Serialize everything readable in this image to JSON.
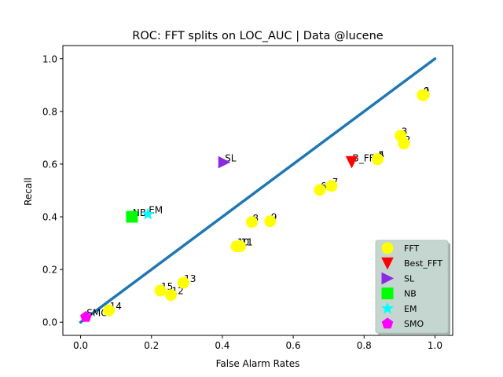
{
  "chart_data": {
    "type": "scatter",
    "title": "ROC: FFT splits on LOC_AUC  |  Data @lucene",
    "xlabel": "False Alarm Rates",
    "ylabel": "Recall",
    "xlim": [
      -0.05,
      1.05
    ],
    "ylim": [
      -0.05,
      1.05
    ],
    "xticks": [
      0.0,
      0.2,
      0.4,
      0.6,
      0.8,
      1.0
    ],
    "xtick_labels": [
      "0.0",
      "0.2",
      "0.4",
      "0.6",
      "0.8",
      "1.0"
    ],
    "yticks": [
      0.0,
      0.2,
      0.4,
      0.6,
      0.8,
      1.0
    ],
    "ytick_labels": [
      "0.0",
      "0.2",
      "0.4",
      "0.6",
      "0.8",
      "1.0"
    ],
    "grid": false,
    "diagonal": {
      "x": [
        0,
        1
      ],
      "y": [
        0,
        1
      ],
      "color": "#1f77b4"
    },
    "legend_position": "lower-right",
    "series": [
      {
        "name": "FFT",
        "marker": "circle",
        "color": "#ffff00",
        "points": [
          {
            "label": "0",
            "x": 0.965,
            "y": 0.862
          },
          {
            "label": "1",
            "x": 0.968,
            "y": 0.862
          },
          {
            "label": "2",
            "x": 0.912,
            "y": 0.678
          },
          {
            "label": "3",
            "x": 0.903,
            "y": 0.708
          },
          {
            "label": "4",
            "x": 0.838,
            "y": 0.619
          },
          {
            "label": "5",
            "x": 0.838,
            "y": 0.619
          },
          {
            "label": "6",
            "x": 0.675,
            "y": 0.502
          },
          {
            "label": "7",
            "x": 0.708,
            "y": 0.517
          },
          {
            "label": "8",
            "x": 0.483,
            "y": 0.38
          },
          {
            "label": "9",
            "x": 0.535,
            "y": 0.383
          },
          {
            "label": "10",
            "x": 0.44,
            "y": 0.288
          },
          {
            "label": "11",
            "x": 0.45,
            "y": 0.288
          },
          {
            "label": "12",
            "x": 0.255,
            "y": 0.103
          },
          {
            "label": "13",
            "x": 0.29,
            "y": 0.15
          },
          {
            "label": "14",
            "x": 0.08,
            "y": 0.045
          },
          {
            "label": "15",
            "x": 0.225,
            "y": 0.12
          }
        ]
      },
      {
        "name": "Best_FFT",
        "marker": "triangle-down",
        "color": "#ff0000",
        "points": [
          {
            "label": "B_FFT",
            "x": 0.765,
            "y": 0.608
          }
        ]
      },
      {
        "name": "SL",
        "marker": "triangle-right",
        "color": "#8a2be2",
        "points": [
          {
            "label": "SL",
            "x": 0.405,
            "y": 0.607
          }
        ]
      },
      {
        "name": "NB",
        "marker": "square",
        "color": "#00ff00",
        "points": [
          {
            "label": "NB",
            "x": 0.145,
            "y": 0.4
          }
        ]
      },
      {
        "name": "EM",
        "marker": "star",
        "color": "#00ffff",
        "points": [
          {
            "label": "EM",
            "x": 0.19,
            "y": 0.41
          }
        ]
      },
      {
        "name": "SMO",
        "marker": "pentagon",
        "color": "#ff00ff",
        "points": [
          {
            "label": "SMO",
            "x": 0.015,
            "y": 0.02
          }
        ]
      }
    ]
  }
}
